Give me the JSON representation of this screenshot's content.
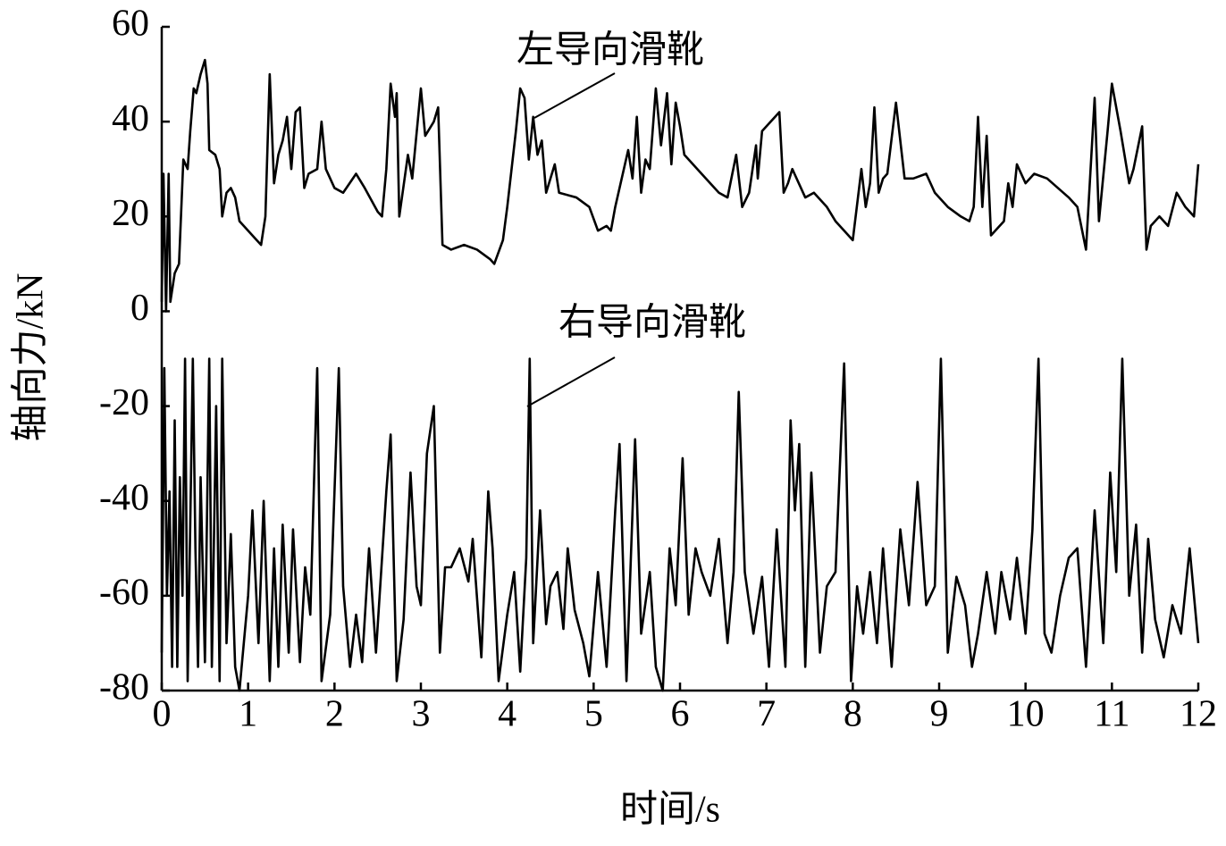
{
  "chart_data": {
    "type": "line",
    "xlabel": "时间/s",
    "ylabel": "轴向力/kN",
    "xlim": [
      0,
      12
    ],
    "ylim": [
      -80,
      60
    ],
    "xticks": [
      0,
      1,
      2,
      3,
      4,
      5,
      6,
      7,
      8,
      9,
      10,
      11,
      12
    ],
    "yticks": [
      -80,
      -60,
      -40,
      -20,
      0,
      20,
      40,
      60
    ],
    "grid": false,
    "series": [
      {
        "name": "左导向滑靴",
        "color": "#000000",
        "x": [
          0.0,
          0.02,
          0.05,
          0.08,
          0.1,
          0.15,
          0.2,
          0.25,
          0.3,
          0.33,
          0.37,
          0.4,
          0.45,
          0.5,
          0.53,
          0.55,
          0.62,
          0.67,
          0.7,
          0.75,
          0.8,
          0.85,
          0.9,
          1.0,
          1.1,
          1.15,
          1.2,
          1.25,
          1.3,
          1.35,
          1.4,
          1.45,
          1.5,
          1.55,
          1.6,
          1.65,
          1.7,
          1.8,
          1.85,
          1.9,
          2.0,
          2.1,
          2.25,
          2.35,
          2.5,
          2.55,
          2.6,
          2.65,
          2.7,
          2.72,
          2.75,
          2.85,
          2.9,
          3.0,
          3.05,
          3.15,
          3.2,
          3.25,
          3.35,
          3.5,
          3.65,
          3.8,
          3.85,
          3.95,
          4.0,
          4.1,
          4.15,
          4.2,
          4.25,
          4.3,
          4.35,
          4.4,
          4.45,
          4.55,
          4.6,
          4.8,
          4.95,
          5.05,
          5.15,
          5.2,
          5.25,
          5.35,
          5.4,
          5.45,
          5.5,
          5.55,
          5.6,
          5.65,
          5.72,
          5.78,
          5.85,
          5.9,
          5.95,
          6.0,
          6.05,
          6.2,
          6.3,
          6.45,
          6.55,
          6.65,
          6.72,
          6.8,
          6.88,
          6.9,
          6.95,
          7.05,
          7.15,
          7.2,
          7.25,
          7.3,
          7.45,
          7.55,
          7.7,
          7.8,
          8.0,
          8.1,
          8.15,
          8.2,
          8.25,
          8.3,
          8.35,
          8.4,
          8.5,
          8.6,
          8.7,
          8.85,
          8.95,
          9.1,
          9.25,
          9.35,
          9.4,
          9.45,
          9.5,
          9.55,
          9.6,
          9.75,
          9.8,
          9.85,
          9.9,
          10.0,
          10.1,
          10.25,
          10.5,
          10.6,
          10.7,
          10.8,
          10.85,
          10.95,
          11.0,
          11.1,
          11.2,
          11.25,
          11.35,
          11.4,
          11.45,
          11.55,
          11.65,
          11.75,
          11.85,
          11.95,
          12.0
        ],
        "values": [
          2,
          29,
          0,
          29,
          2,
          8,
          10,
          32,
          30,
          38,
          47,
          46,
          50,
          53,
          48,
          34,
          33,
          30,
          20,
          25,
          26,
          24,
          19,
          17,
          15,
          14,
          20,
          50,
          27,
          33,
          36,
          41,
          30,
          42,
          43,
          26,
          29,
          30,
          40,
          30,
          26,
          25,
          29,
          26,
          21,
          20,
          30,
          48,
          41,
          46,
          20,
          33,
          28,
          47,
          37,
          40,
          43,
          14,
          13,
          14,
          13,
          11,
          10,
          15,
          22,
          38,
          47,
          45,
          32,
          41,
          33,
          36,
          25,
          31,
          25,
          24,
          22,
          17,
          18,
          17,
          22,
          30,
          34,
          28,
          41,
          25,
          32,
          30,
          47,
          35,
          46,
          31,
          44,
          39,
          33,
          30,
          28,
          25,
          24,
          33,
          22,
          25,
          35,
          28,
          38,
          40,
          42,
          25,
          27,
          30,
          24,
          25,
          22,
          19,
          15,
          30,
          22,
          27,
          43,
          25,
          28,
          29,
          44,
          28,
          28,
          29,
          25,
          22,
          20,
          19,
          22,
          41,
          22,
          37,
          16,
          19,
          27,
          22,
          31,
          27,
          29,
          28,
          24,
          22,
          13,
          45,
          19,
          38,
          48,
          38,
          27,
          30,
          39,
          13,
          18,
          20,
          18,
          25,
          22,
          20,
          31
        ]
      },
      {
        "name": "右导向滑靴",
        "color": "#000000",
        "x": [
          0.0,
          0.03,
          0.06,
          0.09,
          0.12,
          0.15,
          0.18,
          0.21,
          0.24,
          0.27,
          0.3,
          0.33,
          0.36,
          0.39,
          0.42,
          0.45,
          0.5,
          0.55,
          0.58,
          0.63,
          0.67,
          0.7,
          0.75,
          0.8,
          0.85,
          0.9,
          1.0,
          1.05,
          1.12,
          1.18,
          1.25,
          1.3,
          1.35,
          1.4,
          1.47,
          1.52,
          1.6,
          1.66,
          1.72,
          1.8,
          1.85,
          1.95,
          2.05,
          2.1,
          2.18,
          2.25,
          2.32,
          2.4,
          2.48,
          2.6,
          2.65,
          2.72,
          2.8,
          2.88,
          2.95,
          3.0,
          3.07,
          3.15,
          3.22,
          3.28,
          3.35,
          3.45,
          3.55,
          3.6,
          3.7,
          3.78,
          3.83,
          3.9,
          4.0,
          4.08,
          4.15,
          4.22,
          4.26,
          4.3,
          4.38,
          4.45,
          4.5,
          4.58,
          4.65,
          4.7,
          4.78,
          4.88,
          4.95,
          5.05,
          5.15,
          5.25,
          5.3,
          5.38,
          5.48,
          5.55,
          5.65,
          5.72,
          5.8,
          5.88,
          5.95,
          6.03,
          6.1,
          6.18,
          6.25,
          6.35,
          6.45,
          6.55,
          6.62,
          6.68,
          6.75,
          6.85,
          6.95,
          7.03,
          7.12,
          7.22,
          7.28,
          7.33,
          7.38,
          7.45,
          7.52,
          7.62,
          7.7,
          7.8,
          7.9,
          7.98,
          8.05,
          8.12,
          8.2,
          8.28,
          8.35,
          8.45,
          8.55,
          8.65,
          8.75,
          8.85,
          8.95,
          9.02,
          9.1,
          9.2,
          9.3,
          9.38,
          9.45,
          9.55,
          9.65,
          9.72,
          9.82,
          9.9,
          10.0,
          10.08,
          10.15,
          10.22,
          10.3,
          10.4,
          10.5,
          10.6,
          10.7,
          10.8,
          10.9,
          10.98,
          11.05,
          11.12,
          11.2,
          11.28,
          11.35,
          11.42,
          11.5,
          11.6,
          11.7,
          11.8,
          11.9,
          12.0
        ],
        "values": [
          -72,
          -12,
          -60,
          -38,
          -75,
          -23,
          -75,
          -35,
          -60,
          -10,
          -78,
          -45,
          -10,
          -50,
          -75,
          -35,
          -74,
          -10,
          -75,
          -20,
          -78,
          -10,
          -70,
          -47,
          -75,
          -80,
          -60,
          -42,
          -70,
          -40,
          -78,
          -50,
          -75,
          -45,
          -72,
          -46,
          -74,
          -54,
          -64,
          -12,
          -78,
          -64,
          -12,
          -58,
          -75,
          -64,
          -74,
          -50,
          -72,
          -38,
          -26,
          -78,
          -65,
          -34,
          -58,
          -62,
          -30,
          -20,
          -72,
          -54,
          -54,
          -50,
          -57,
          -48,
          -73,
          -38,
          -50,
          -78,
          -64,
          -55,
          -76,
          -52,
          -10,
          -70,
          -42,
          -66,
          -58,
          -55,
          -67,
          -50,
          -63,
          -70,
          -77,
          -55,
          -75,
          -42,
          -28,
          -78,
          -27,
          -68,
          -55,
          -75,
          -80,
          -50,
          -62,
          -31,
          -64,
          -50,
          -55,
          -60,
          -48,
          -70,
          -55,
          -17,
          -55,
          -68,
          -56,
          -75,
          -46,
          -75,
          -23,
          -42,
          -28,
          -75,
          -34,
          -72,
          -58,
          -55,
          -11,
          -78,
          -58,
          -68,
          -55,
          -70,
          -50,
          -75,
          -46,
          -62,
          -36,
          -62,
          -58,
          -10,
          -72,
          -56,
          -62,
          -75,
          -68,
          -55,
          -68,
          -55,
          -65,
          -52,
          -68,
          -46,
          -10,
          -68,
          -72,
          -60,
          -52,
          -50,
          -75,
          -42,
          -70,
          -34,
          -55,
          -10,
          -60,
          -45,
          -72,
          -48,
          -65,
          -73,
          -62,
          -68,
          -50,
          -70
        ]
      }
    ]
  }
}
